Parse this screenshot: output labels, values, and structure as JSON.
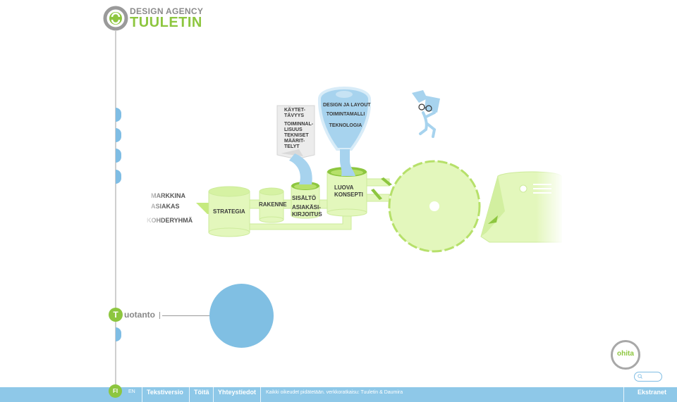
{
  "logo": {
    "line1": "DESIGN AGENCY",
    "line2": "TUULETIN"
  },
  "illustration": {
    "audience_labels": [
      "MARKKINA",
      "ASIAKAS",
      "KOHDERYHMÄ"
    ],
    "strategia": "STRATEGIA",
    "rakenne": "RAKENNE",
    "sisalto": [
      "SISÄLTÖ",
      "ASIAKÄSI-",
      "KIRJOITUS"
    ],
    "luova_konsepti": [
      "LUOVA",
      "KONSEPTI"
    ],
    "note_card": [
      "KÄYTET-",
      "TÄVYYS",
      "TOIMINNAL-",
      "LISUUS",
      "TEKNISET",
      "MÄÄRIT-",
      "TELYT"
    ],
    "funnel": [
      "DESIGN JA LAYOUT",
      "TOIMINTAMALLI",
      "TEKNOLOGIA"
    ]
  },
  "section": {
    "letter": "T",
    "label": "uotanto"
  },
  "ohita": "ohita",
  "footer": {
    "lang_fi": "FI",
    "lang_en": "EN",
    "links": [
      "Tekstiversio",
      "Töitä",
      "Yhteystiedot"
    ],
    "copyright": "Kaikki oikeudet pidätetään. verkkoratkaisu: Tuuletin & Daumira",
    "ekstranet": "Ekstranet"
  },
  "colors": {
    "green": "#8dc63f",
    "light_green": "#e3f7bc",
    "blue": "#80bfe3",
    "bar_blue": "#8ec8e8"
  }
}
